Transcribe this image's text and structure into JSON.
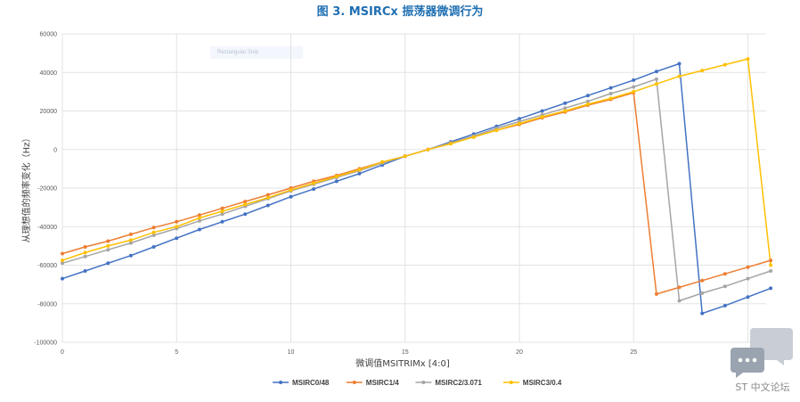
{
  "figure": {
    "title_prefix": "图 3.",
    "title_text": "MSIRCx 振荡器微调行为"
  },
  "tooltip_ghost": "Rectangular Snip",
  "watermark": {
    "text": "ST 中文论坛"
  },
  "chart_data": {
    "type": "line",
    "xlabel": "微调值MSITRIMx [4:0]",
    "ylabel": "从理想值的频率变化（Hz）",
    "xlim": [
      0,
      30.8
    ],
    "ylim": [
      -100000,
      60000
    ],
    "x_ticks": [
      0,
      5,
      10,
      15,
      20,
      25,
      30
    ],
    "y_ticks": [
      60000,
      40000,
      20000,
      0,
      -20000,
      -40000,
      -60000,
      -80000,
      -100000
    ],
    "grid": true,
    "legend_position": "bottom",
    "series": [
      {
        "name": "MSIRC0/48",
        "color": "#4472c4",
        "x": [
          0,
          1,
          2,
          3,
          4,
          5,
          6,
          7,
          8,
          9,
          10,
          11,
          12,
          13,
          14,
          15,
          16,
          17,
          18,
          19,
          20,
          21,
          22,
          23,
          24,
          25,
          26,
          27,
          28,
          29,
          30,
          31
        ],
        "y": [
          -67000,
          -63000,
          -59000,
          -55000,
          -50500,
          -46000,
          -41500,
          -37500,
          -33500,
          -29000,
          -24500,
          -20500,
          -16500,
          -12500,
          -8000,
          -3500,
          0,
          4000,
          8000,
          12000,
          16000,
          20000,
          24000,
          28000,
          32000,
          36000,
          40500,
          44500,
          -85000,
          -81000,
          -76500,
          -72000
        ]
      },
      {
        "name": "MSIRC1/4",
        "color": "#ed7d31",
        "x": [
          0,
          1,
          2,
          3,
          4,
          5,
          6,
          7,
          8,
          9,
          10,
          11,
          12,
          13,
          14,
          15,
          16,
          17,
          18,
          19,
          20,
          21,
          22,
          23,
          24,
          25,
          26,
          27,
          28,
          29,
          30,
          31
        ],
        "y": [
          -54000,
          -50500,
          -47500,
          -44000,
          -40500,
          -37500,
          -34000,
          -30500,
          -27000,
          -23500,
          -20000,
          -16500,
          -13500,
          -10000,
          -6500,
          -3500,
          0,
          3500,
          6500,
          10000,
          13000,
          16500,
          19500,
          23000,
          26000,
          29500,
          -75000,
          -71500,
          -68000,
          -64500,
          -61000,
          -57500
        ]
      },
      {
        "name": "MSIRC2/3.071",
        "color": "#a5a5a5",
        "x": [
          0,
          1,
          2,
          3,
          4,
          5,
          6,
          7,
          8,
          9,
          10,
          11,
          12,
          13,
          14,
          15,
          16,
          17,
          18,
          19,
          20,
          21,
          22,
          23,
          24,
          25,
          26,
          27,
          28,
          29,
          30,
          31
        ],
        "y": [
          -59000,
          -55500,
          -52000,
          -48500,
          -44500,
          -41000,
          -37000,
          -33500,
          -29500,
          -25500,
          -21500,
          -18000,
          -14500,
          -11000,
          -7000,
          -3500,
          0,
          3500,
          7000,
          11000,
          14500,
          18000,
          21500,
          25000,
          29000,
          32500,
          36500,
          -78500,
          -74500,
          -71000,
          -67000,
          -63000
        ]
      },
      {
        "name": "MSIRC3/0.4",
        "color": "#ffc000",
        "x": [
          0,
          1,
          2,
          3,
          4,
          5,
          6,
          7,
          8,
          9,
          10,
          11,
          12,
          13,
          14,
          15,
          16,
          17,
          18,
          19,
          20,
          21,
          22,
          23,
          24,
          25,
          26,
          27,
          28,
          29,
          30,
          31
        ],
        "y": [
          -57500,
          -53500,
          -50000,
          -47000,
          -43000,
          -40000,
          -35500,
          -32000,
          -28500,
          -25000,
          -21000,
          -17500,
          -14000,
          -10500,
          -6500,
          -3500,
          0,
          3000,
          6500,
          10000,
          13500,
          17000,
          20000,
          23500,
          26500,
          30000,
          34000,
          38000,
          41000,
          44000,
          47000,
          -60000
        ]
      }
    ]
  }
}
